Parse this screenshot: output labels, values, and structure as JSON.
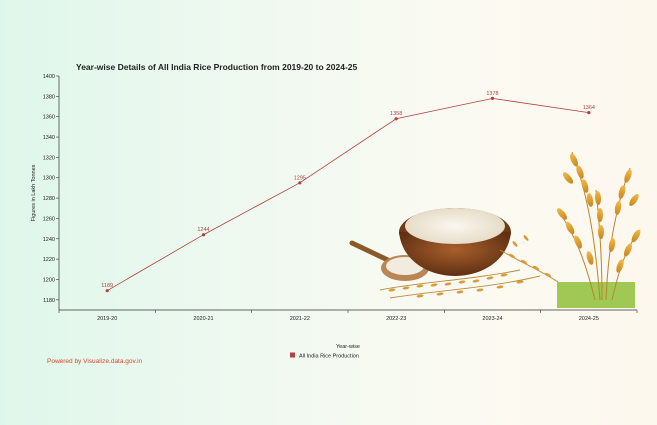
{
  "chart_data": {
    "type": "line",
    "title": "Year-wise Details of All India Rice Production from 2019-20 to 2024-25",
    "xlabel": "Year-wise",
    "ylabel": "Figures in Lakh Tonnes",
    "categories": [
      "2019-20",
      "2020-21",
      "2021-22",
      "2022-23",
      "2023-24",
      "2024-25"
    ],
    "series": [
      {
        "name": "All India Rice Production",
        "values": [
          1189,
          1244,
          1295,
          1358,
          1378,
          1364
        ]
      }
    ],
    "ylim": [
      1170,
      1400
    ],
    "yticks": [
      1180,
      1200,
      1220,
      1240,
      1260,
      1280,
      1300,
      1320,
      1340,
      1360,
      1380,
      1400
    ],
    "grid": false,
    "legend_position": "bottom-center",
    "colors": {
      "series": "#b0413e",
      "title": "#222222",
      "powered": "#d9472b"
    }
  },
  "footer": {
    "powered_by": "Powered by Visualize.data.gov.in"
  }
}
